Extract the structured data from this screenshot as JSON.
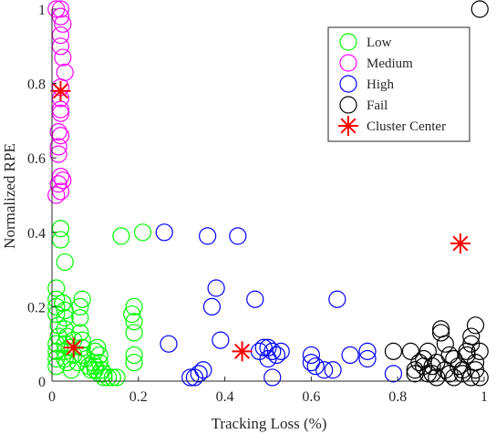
{
  "chart_data": {
    "type": "scatter",
    "title": "",
    "xlabel": "Tracking Loss (%)",
    "ylabel": "Normalized RPE",
    "xlim": [
      0,
      1
    ],
    "ylim": [
      0,
      1
    ],
    "xticks": [
      "0",
      "0.2",
      "0.4",
      "0.6",
      "0.8",
      "1"
    ],
    "yticks": [
      "0",
      "0.2",
      "0.4",
      "0.6",
      "0.8",
      "1"
    ],
    "grid": false,
    "legend_position": "top-right",
    "series": [
      {
        "name": "Low",
        "color": "#00ff00",
        "marker": "circle",
        "points": [
          [
            0.01,
            0.25
          ],
          [
            0.01,
            0.22
          ],
          [
            0.01,
            0.2
          ],
          [
            0.01,
            0.18
          ],
          [
            0.015,
            0.15
          ],
          [
            0.015,
            0.12
          ],
          [
            0.01,
            0.1
          ],
          [
            0.01,
            0.08
          ],
          [
            0.01,
            0.06
          ],
          [
            0.01,
            0.04
          ],
          [
            0.02,
            0.41
          ],
          [
            0.02,
            0.38
          ],
          [
            0.03,
            0.32
          ],
          [
            0.025,
            0.21
          ],
          [
            0.03,
            0.19
          ],
          [
            0.03,
            0.17
          ],
          [
            0.03,
            0.14
          ],
          [
            0.035,
            0.12
          ],
          [
            0.03,
            0.1
          ],
          [
            0.03,
            0.08
          ],
          [
            0.03,
            0.06
          ],
          [
            0.035,
            0.05
          ],
          [
            0.04,
            0.09
          ],
          [
            0.05,
            0.11
          ],
          [
            0.05,
            0.07
          ],
          [
            0.06,
            0.05
          ],
          [
            0.065,
            0.2
          ],
          [
            0.065,
            0.17
          ],
          [
            0.07,
            0.22
          ],
          [
            0.065,
            0.13
          ],
          [
            0.07,
            0.11
          ],
          [
            0.07,
            0.09
          ],
          [
            0.07,
            0.07
          ],
          [
            0.08,
            0.06
          ],
          [
            0.085,
            0.04
          ],
          [
            0.09,
            0.03
          ],
          [
            0.095,
            0.05
          ],
          [
            0.1,
            0.04
          ],
          [
            0.1,
            0.03
          ],
          [
            0.1,
            0.08
          ],
          [
            0.105,
            0.09
          ],
          [
            0.11,
            0.07
          ],
          [
            0.11,
            0.05
          ],
          [
            0.115,
            0.03
          ],
          [
            0.11,
            0.02
          ],
          [
            0.12,
            0.01
          ],
          [
            0.12,
            0.02
          ],
          [
            0.13,
            0.01
          ],
          [
            0.14,
            0.01
          ],
          [
            0.15,
            0.01
          ],
          [
            0.16,
            0.39
          ],
          [
            0.21,
            0.4
          ],
          [
            0.19,
            0.2
          ],
          [
            0.185,
            0.18
          ],
          [
            0.19,
            0.16
          ],
          [
            0.19,
            0.13
          ],
          [
            0.19,
            0.07
          ],
          [
            0.19,
            0.05
          ],
          [
            0.025,
            0.21
          ],
          [
            0.045,
            0.03
          ]
        ]
      },
      {
        "name": "Medium",
        "color": "#ff00ff",
        "marker": "circle",
        "points": [
          [
            0.01,
            1.0
          ],
          [
            0.02,
            1.0
          ],
          [
            0.02,
            0.98
          ],
          [
            0.025,
            0.96
          ],
          [
            0.02,
            0.93
          ],
          [
            0.02,
            0.9
          ],
          [
            0.025,
            0.87
          ],
          [
            0.03,
            0.83
          ],
          [
            0.02,
            0.79
          ],
          [
            0.02,
            0.76
          ],
          [
            0.02,
            0.73
          ],
          [
            0.02,
            0.72
          ],
          [
            0.015,
            0.67
          ],
          [
            0.02,
            0.66
          ],
          [
            0.015,
            0.63
          ],
          [
            0.015,
            0.61
          ],
          [
            0.02,
            0.55
          ],
          [
            0.025,
            0.54
          ],
          [
            0.015,
            0.53
          ],
          [
            0.02,
            0.51
          ],
          [
            0.01,
            0.5
          ]
        ]
      },
      {
        "name": "High",
        "color": "#0000ff",
        "marker": "circle",
        "points": [
          [
            0.26,
            0.4
          ],
          [
            0.36,
            0.39
          ],
          [
            0.43,
            0.39
          ],
          [
            0.38,
            0.25
          ],
          [
            0.37,
            0.2
          ],
          [
            0.47,
            0.22
          ],
          [
            0.66,
            0.22
          ],
          [
            0.27,
            0.1
          ],
          [
            0.39,
            0.11
          ],
          [
            0.48,
            0.08
          ],
          [
            0.49,
            0.09
          ],
          [
            0.5,
            0.09
          ],
          [
            0.51,
            0.08
          ],
          [
            0.5,
            0.06
          ],
          [
            0.52,
            0.07
          ],
          [
            0.53,
            0.08
          ],
          [
            0.51,
            0.01
          ],
          [
            0.35,
            0.03
          ],
          [
            0.34,
            0.02
          ],
          [
            0.33,
            0.01
          ],
          [
            0.32,
            0.01
          ],
          [
            0.6,
            0.07
          ],
          [
            0.6,
            0.05
          ],
          [
            0.61,
            0.04
          ],
          [
            0.63,
            0.03
          ],
          [
            0.65,
            0.03
          ],
          [
            0.69,
            0.07
          ],
          [
            0.73,
            0.08
          ],
          [
            0.73,
            0.06
          ],
          [
            0.79,
            0.02
          ]
        ]
      },
      {
        "name": "Fail",
        "color": "#000000",
        "marker": "circle",
        "points": [
          [
            0.99,
            1.0
          ],
          [
            0.79,
            0.08
          ],
          [
            0.83,
            0.08
          ],
          [
            0.85,
            0.05
          ],
          [
            0.84,
            0.03
          ],
          [
            0.84,
            0.02
          ],
          [
            0.86,
            0.06
          ],
          [
            0.87,
            0.08
          ],
          [
            0.88,
            0.04
          ],
          [
            0.89,
            0.05
          ],
          [
            0.9,
            0.14
          ],
          [
            0.9,
            0.13
          ],
          [
            0.91,
            0.1
          ],
          [
            0.92,
            0.07
          ],
          [
            0.93,
            0.06
          ],
          [
            0.94,
            0.04
          ],
          [
            0.95,
            0.03
          ],
          [
            0.96,
            0.07
          ],
          [
            0.97,
            0.12
          ],
          [
            0.98,
            0.15
          ],
          [
            0.97,
            0.1
          ],
          [
            0.96,
            0.08
          ],
          [
            0.98,
            0.05
          ],
          [
            0.98,
            0.03
          ],
          [
            0.99,
            0.01
          ],
          [
            0.97,
            0.01
          ],
          [
            0.92,
            0.02
          ],
          [
            0.89,
            0.01
          ],
          [
            0.87,
            0.02
          ],
          [
            0.86,
            0.04
          ],
          [
            0.88,
            0.02
          ],
          [
            0.91,
            0.03
          ],
          [
            0.93,
            0.01
          ],
          [
            0.95,
            0.02
          ],
          [
            0.99,
            0.08
          ]
        ]
      },
      {
        "name": "Cluster Center",
        "color": "#ff0000",
        "marker": "asterisk",
        "points": [
          [
            0.02,
            0.78
          ],
          [
            0.05,
            0.09
          ],
          [
            0.44,
            0.08
          ],
          [
            0.945,
            0.37
          ]
        ]
      }
    ]
  }
}
